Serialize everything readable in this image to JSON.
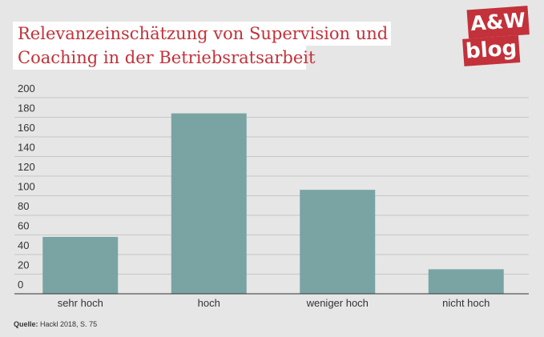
{
  "title": {
    "line1": "Relevanzeinschätzung von Supervision und",
    "line2": "Coaching in der Betriebsratsarbeit"
  },
  "logo": {
    "top_text": "A&W",
    "bottom_text": "blog"
  },
  "source": {
    "label": "Quelle:",
    "text": "Hackl 2018, S. 75"
  },
  "colors": {
    "bar": "#7aa4a4",
    "title": "#c3313a",
    "background": "#e6e6e6",
    "grid": "#c6c6c6"
  },
  "chart_data": {
    "type": "bar",
    "categories": [
      "sehr hoch",
      "hoch",
      "weniger hoch",
      "nicht hoch"
    ],
    "values": [
      58,
      184,
      106,
      25
    ],
    "ylim": [
      0,
      200
    ],
    "yticks": [
      0,
      20,
      40,
      60,
      80,
      100,
      120,
      140,
      160,
      180,
      200
    ],
    "grid": true,
    "title": "Relevanzeinschätzung von Supervision und Coaching in der Betriebsratsarbeit"
  }
}
